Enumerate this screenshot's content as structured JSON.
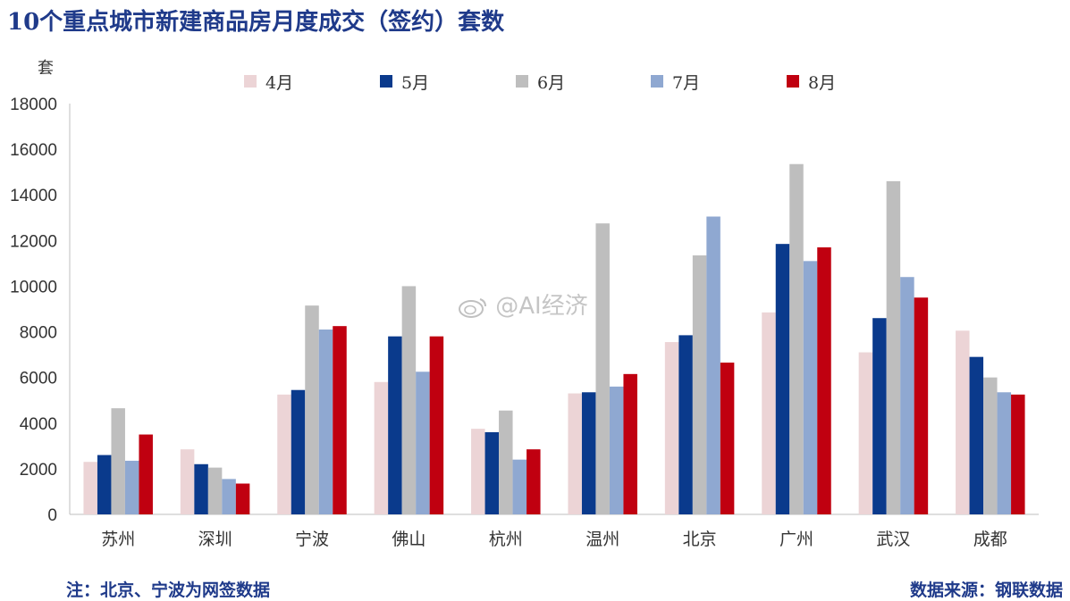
{
  "header": {
    "title": "10个重点城市新建商品房月度成交（签约）套数",
    "unit": "套"
  },
  "footer": {
    "note": "注：北京、宁波为网签数据",
    "source": "数据来源：钢联数据"
  },
  "watermark": {
    "text": "@AI经济"
  },
  "colors": {
    "4月": "#ecd4d6",
    "5月": "#0a3a8c",
    "6月": "#bebebe",
    "7月": "#8fa8d1",
    "8月": "#c00010"
  },
  "chart_data": {
    "type": "bar",
    "categories": [
      "苏州",
      "深圳",
      "宁波",
      "佛山",
      "杭州",
      "温州",
      "北京",
      "广州",
      "武汉",
      "成都"
    ],
    "series": [
      {
        "name": "4月",
        "values": [
          2300,
          2850,
          5250,
          5800,
          3750,
          5300,
          7550,
          8850,
          7100,
          8050
        ]
      },
      {
        "name": "5月",
        "values": [
          2600,
          2200,
          5450,
          7800,
          3600,
          5350,
          7850,
          11850,
          8600,
          6900
        ]
      },
      {
        "name": "6月",
        "values": [
          4650,
          2050,
          9150,
          10000,
          4550,
          12750,
          11350,
          15350,
          14600,
          6000
        ]
      },
      {
        "name": "7月",
        "values": [
          2350,
          1550,
          8100,
          6250,
          2400,
          5600,
          13050,
          11100,
          10400,
          5350
        ]
      },
      {
        "name": "8月",
        "values": [
          3500,
          1350,
          8250,
          7800,
          2850,
          6150,
          6650,
          11700,
          9500,
          5250
        ]
      }
    ],
    "yticks": [
      0,
      2000,
      4000,
      6000,
      8000,
      10000,
      12000,
      14000,
      16000,
      18000
    ],
    "ylim": [
      0,
      18000
    ],
    "legend_position": "top",
    "grid": false
  }
}
